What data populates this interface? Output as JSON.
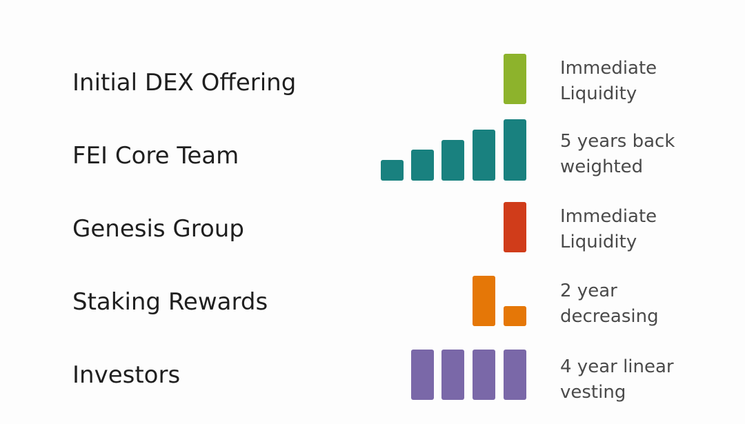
{
  "rows": [
    {
      "label": "Initial DEX Offering",
      "desc_line1": "Immediate",
      "desc_line2": "Liquidity",
      "color": "#8db32c",
      "bars": [
        1
      ]
    },
    {
      "label": "FEI Core Team",
      "desc_line1": "5 years back",
      "desc_line2": "weighted",
      "color": "#19817f",
      "bars": [
        0.2,
        0.4,
        0.6,
        0.8,
        1
      ]
    },
    {
      "label": "Genesis Group",
      "desc_line1": "Immediate",
      "desc_line2": "Liquidity",
      "color": "#d03c1a",
      "bars": [
        1
      ]
    },
    {
      "label": "Staking Rewards",
      "desc_line1": "2 year",
      "desc_line2": "decreasing",
      "color": "#e57707",
      "bars": [
        1,
        0.4
      ]
    },
    {
      "label": "Investors",
      "desc_line1": "4 year linear",
      "desc_line2": "vesting",
      "color": "#7a68a8",
      "bars": [
        1,
        1,
        1,
        1
      ]
    }
  ]
}
